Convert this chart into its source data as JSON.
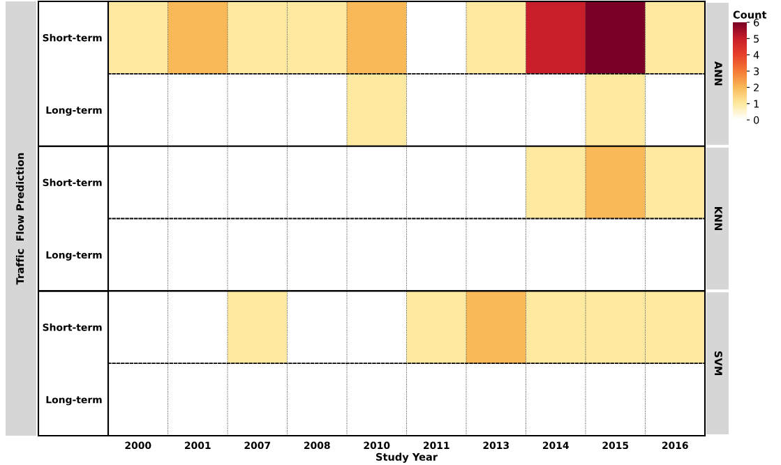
{
  "chart_data": {
    "type": "heatmap",
    "categories": [
      "2000",
      "2001",
      "2007",
      "2008",
      "2010",
      "2011",
      "2013",
      "2014",
      "2015",
      "2016"
    ],
    "y_categories": [
      "Short-term",
      "Long-term",
      "Short-term",
      "Long-term",
      "Short-term",
      "Long-term"
    ],
    "y2_categories": [
      "ANN",
      null,
      "KNN",
      null,
      "SVM",
      null
    ],
    "ylabel": "Traffic  Flow Prediction",
    "xlabel": "Study Year",
    "cells": [
      [
        1,
        2,
        1,
        1,
        2,
        0,
        1,
        5,
        6,
        1
      ],
      [
        0,
        0,
        0,
        0,
        1,
        0,
        0,
        0,
        1,
        0
      ],
      [
        0,
        0,
        0,
        0,
        0,
        0,
        0,
        1,
        2,
        1
      ],
      [
        0,
        0,
        0,
        0,
        0,
        0,
        0,
        0,
        0,
        0
      ],
      [
        0,
        0,
        1,
        0,
        0,
        1,
        2,
        1,
        1,
        1
      ],
      [
        0,
        0,
        0,
        0,
        0,
        0,
        0,
        0,
        0,
        0
      ]
    ],
    "clim": [
      0,
      6
    ],
    "cticks": [
      0,
      1,
      2,
      3,
      4,
      5,
      6
    ],
    "clabel": "Count",
    "grid": "x"
  }
}
